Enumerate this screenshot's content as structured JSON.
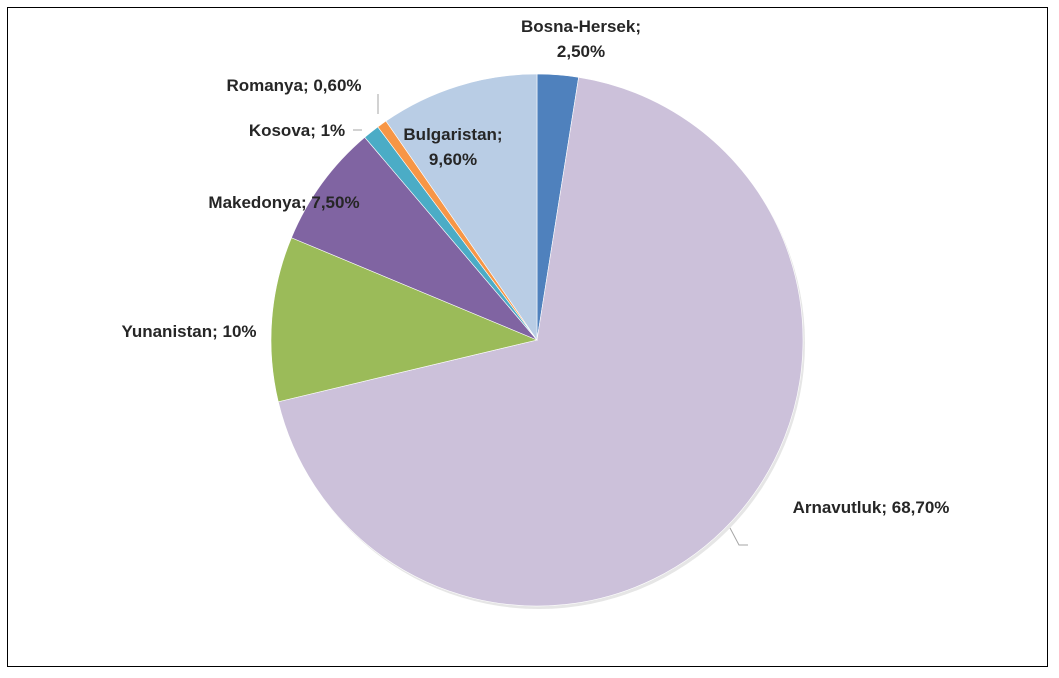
{
  "chart_data": {
    "type": "pie",
    "categories": [
      "Bosna-Hersek",
      "Arnavutluk",
      "Yunanistan",
      "Makedonya",
      "Kosova",
      "Romanya",
      "Bulgaristan"
    ],
    "values": [
      2.5,
      68.7,
      10,
      7.5,
      1,
      0.6,
      9.6
    ],
    "value_labels": [
      "2,50%",
      "68,70%",
      "10%",
      "7,50%",
      "1%",
      "0,60%",
      "9,60%"
    ],
    "colors": [
      "#4f81bd",
      "#ccc1da",
      "#9bbb59",
      "#8064a2",
      "#4bacc6",
      "#f79646",
      "#b9cde5"
    ],
    "title": "",
    "legend": "none",
    "label_separator": "; "
  }
}
